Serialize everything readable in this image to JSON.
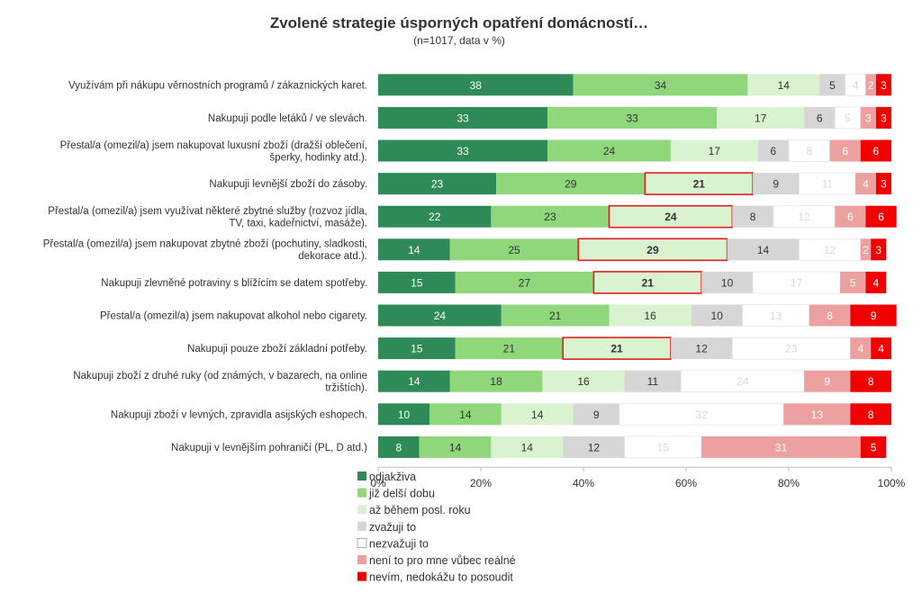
{
  "chart_data": {
    "type": "bar",
    "orientation": "horizontal",
    "stacked": true,
    "title": "Zvolené strategie úsporných opatření domácností…",
    "subtitle": "(n=1017, data v %)",
    "xlim": [
      0,
      100
    ],
    "xticks": [
      "0%",
      "20%",
      "40%",
      "60%",
      "80%",
      "100%"
    ],
    "grid": false,
    "legend_position": "bottom",
    "categories": [
      [
        "Využívám při nákupu věrnostních programů / zákaznických karet."
      ],
      [
        "Nakupuji podle letáků / ve slevách."
      ],
      [
        "Přestal/a (omezil/a) jsem nakupovat luxusní zboží (dražší oblečení,",
        "šperky, hodinky atd.)."
      ],
      [
        "Nakupuji levnější zboží do zásoby."
      ],
      [
        "Přestal/a (omezil/a) jsem využívat některé zbytné služby (rozvoz jídla,",
        "TV, taxi, kadeřnictví, masáže)."
      ],
      [
        "Přestal/a (omezil/a) jsem nakupovat zbytné zboží (pochutiny, sladkosti,",
        "dekorace atd.)."
      ],
      [
        "Nakupuji zlevněné potraviny s blížícím se datem spotřeby."
      ],
      [
        "Přestal/a (omezil/a) jsem nakupovat alkohol nebo cigarety."
      ],
      [
        "Nakupuji pouze zboží základní potřeby."
      ],
      [
        "Nakupuji zboží z druhé ruky (od známých, v bazarech, na online",
        "tržištích)."
      ],
      [
        "Nakupuji zboží v levných, zpravidla asijských eshopech."
      ],
      [
        "Nakupuji v levnějším pohraničí (PL, D atd.)"
      ]
    ],
    "series": [
      {
        "name": "odjakživa",
        "color": "#2e8b57",
        "label_color": "#ffffff",
        "values": [
          38,
          33,
          33,
          23,
          22,
          14,
          15,
          24,
          15,
          14,
          10,
          8
        ]
      },
      {
        "name": "již delší dobu",
        "color": "#90d67a",
        "label_color": "#333333",
        "values": [
          34,
          33,
          24,
          29,
          23,
          25,
          27,
          21,
          21,
          18,
          14,
          14
        ]
      },
      {
        "name": "až během posl. roku",
        "color": "#d9f2d0",
        "label_color": "#333333",
        "values": [
          14,
          17,
          17,
          21,
          24,
          29,
          21,
          16,
          21,
          16,
          14,
          14
        ]
      },
      {
        "name": "zvažuji to",
        "color": "#d6d6d6",
        "label_color": "#333333",
        "values": [
          5,
          6,
          6,
          9,
          8,
          14,
          10,
          10,
          12,
          11,
          9,
          12
        ]
      },
      {
        "name": "nezvažuji to",
        "color": "#ffffff",
        "label_color": "#d9d9d9",
        "values": [
          4,
          5,
          8,
          11,
          12,
          12,
          17,
          13,
          23,
          24,
          32,
          15
        ]
      },
      {
        "name": "není to pro mne vůbec reálné",
        "color": "#eda0a0",
        "label_color": "#ffffff",
        "values": [
          2,
          3,
          6,
          4,
          6,
          2,
          5,
          8,
          4,
          9,
          13,
          31
        ]
      },
      {
        "name": "nevím, nedokážu to posoudit",
        "color": "#f00000",
        "label_color": "#ffffff",
        "values": [
          3,
          3,
          6,
          3,
          6,
          3,
          4,
          9,
          4,
          8,
          8,
          5
        ]
      }
    ],
    "highlight_series": "až během posl. roku",
    "highlight_rows": [
      3,
      4,
      5,
      6,
      8
    ],
    "highlight_color": "#e02020"
  }
}
